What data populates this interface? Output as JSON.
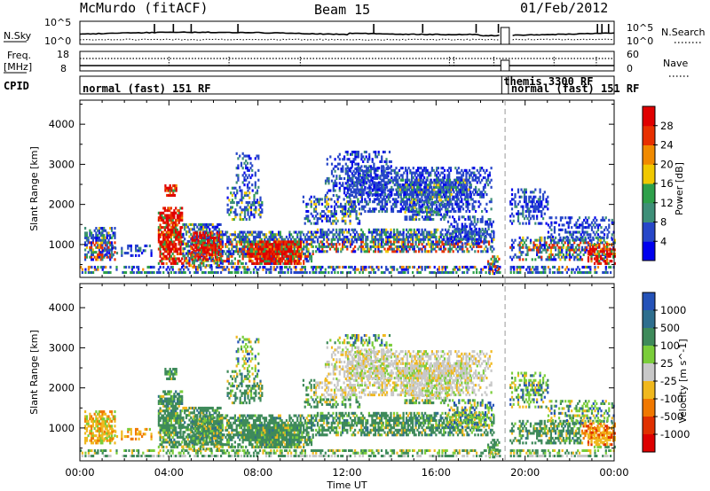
{
  "header": {
    "station": "McMurdo (fitACF)",
    "beam": "Beam 15",
    "date": "01/Feb/2012"
  },
  "noise_panel": {
    "left_label": "N.Sky",
    "right_label": "N.Search",
    "left_ticks": [
      "10^5",
      "10^0"
    ],
    "right_ticks": [
      "10^5",
      "10^0"
    ],
    "right_legend_style": "dotted"
  },
  "freq_panel": {
    "left_label_1": "Freq.",
    "left_label_2": "[MHz]",
    "right_label": "Nave",
    "left_ticks": [
      "18",
      "8"
    ],
    "right_ticks": [
      "60",
      "0"
    ],
    "right_legend_style": "dotted"
  },
  "cpid_panel": {
    "label": "CPID",
    "segments": [
      {
        "text": "normal (fast) 151 RF",
        "start_h": 0.0,
        "end_h": 18.95
      },
      {
        "text": "themis 3300 RF",
        "start_h": 18.95,
        "end_h": 19.25
      },
      {
        "text": "normal (fast) 151 RF",
        "start_h": 19.25,
        "end_h": 24.0
      }
    ]
  },
  "chart_data": [
    {
      "type": "heatmap",
      "name": "power",
      "ylabel": "Slant Range [km]",
      "ylim": [
        180,
        4600
      ],
      "yticks": [
        1000,
        2000,
        3000,
        4000
      ],
      "colorbar": {
        "label": "Power [dB]",
        "range": [
          0,
          32
        ],
        "ticks": [
          4,
          8,
          12,
          16,
          20,
          24,
          28
        ],
        "colors": [
          "#0000ee",
          "#2747c8",
          "#3e8f78",
          "#2ea04a",
          "#f0c800",
          "#f08a00",
          "#e83000",
          "#e00000"
        ]
      }
    },
    {
      "type": "heatmap",
      "name": "velocity",
      "ylabel": "Slant Range [km]",
      "ylim": [
        180,
        4600
      ],
      "yticks": [
        1000,
        2000,
        3000,
        4000
      ],
      "colorbar": {
        "label": "Velocity [m s^-1]",
        "ticks": [
          "1000",
          "500",
          "100",
          "25",
          "-25",
          "-100",
          "-500",
          "-1000"
        ],
        "colors": [
          "#2452b8",
          "#2e6e8e",
          "#3e8a5a",
          "#7acd3a",
          "#c8c8c8",
          "#f0b81e",
          "#f07800",
          "#e03000",
          "#dd0000"
        ]
      }
    }
  ],
  "time_axis": {
    "label": "Time UT",
    "range_h": [
      0,
      24
    ],
    "ticks": [
      "00:00",
      "04:00",
      "08:00",
      "12:00",
      "16:00",
      "20:00",
      "00:00"
    ]
  },
  "data_gap": {
    "start_h": 18.95,
    "end_h": 19.25
  }
}
